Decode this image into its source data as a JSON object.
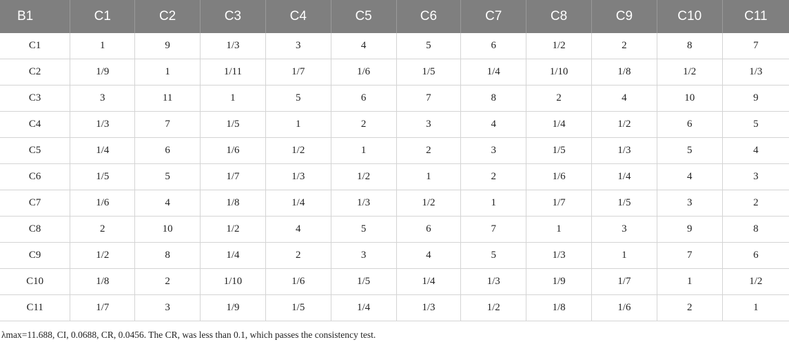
{
  "table": {
    "headers": [
      "B1",
      "C1",
      "C2",
      "C3",
      "C4",
      "C5",
      "C6",
      "C7",
      "C8",
      "C9",
      "C10",
      "C11"
    ],
    "rows": [
      [
        "C1",
        "1",
        "9",
        "1/3",
        "3",
        "4",
        "5",
        "6",
        "1/2",
        "2",
        "8",
        "7"
      ],
      [
        "C2",
        "1/9",
        "1",
        "1/11",
        "1/7",
        "1/6",
        "1/5",
        "1/4",
        "1/10",
        "1/8",
        "1/2",
        "1/3"
      ],
      [
        "C3",
        "3",
        "11",
        "1",
        "5",
        "6",
        "7",
        "8",
        "2",
        "4",
        "10",
        "9"
      ],
      [
        "C4",
        "1/3",
        "7",
        "1/5",
        "1",
        "2",
        "3",
        "4",
        "1/4",
        "1/2",
        "6",
        "5"
      ],
      [
        "C5",
        "1/4",
        "6",
        "1/6",
        "1/2",
        "1",
        "2",
        "3",
        "1/5",
        "1/3",
        "5",
        "4"
      ],
      [
        "C6",
        "1/5",
        "5",
        "1/7",
        "1/3",
        "1/2",
        "1",
        "2",
        "1/6",
        "1/4",
        "4",
        "3"
      ],
      [
        "C7",
        "1/6",
        "4",
        "1/8",
        "1/4",
        "1/3",
        "1/2",
        "1",
        "1/7",
        "1/5",
        "3",
        "2"
      ],
      [
        "C8",
        "2",
        "10",
        "1/2",
        "4",
        "5",
        "6",
        "7",
        "1",
        "3",
        "9",
        "8"
      ],
      [
        "C9",
        "1/2",
        "8",
        "1/4",
        "2",
        "3",
        "4",
        "5",
        "1/3",
        "1",
        "7",
        "6"
      ],
      [
        "C10",
        "1/8",
        "2",
        "1/10",
        "1/6",
        "1/5",
        "1/4",
        "1/3",
        "1/9",
        "1/7",
        "1",
        "1/2"
      ],
      [
        "C11",
        "1/7",
        "3",
        "1/9",
        "1/5",
        "1/4",
        "1/3",
        "1/2",
        "1/8",
        "1/6",
        "2",
        "1"
      ]
    ]
  },
  "footnote": "λmax=11.688, CI, 0.0688, CR, 0.0456. The CR, was less than 0.1, which passes the consistency test.",
  "colors": {
    "header_background": "#7f7f7f",
    "header_text": "#ffffff",
    "grid_line": "#d4d4d4"
  }
}
